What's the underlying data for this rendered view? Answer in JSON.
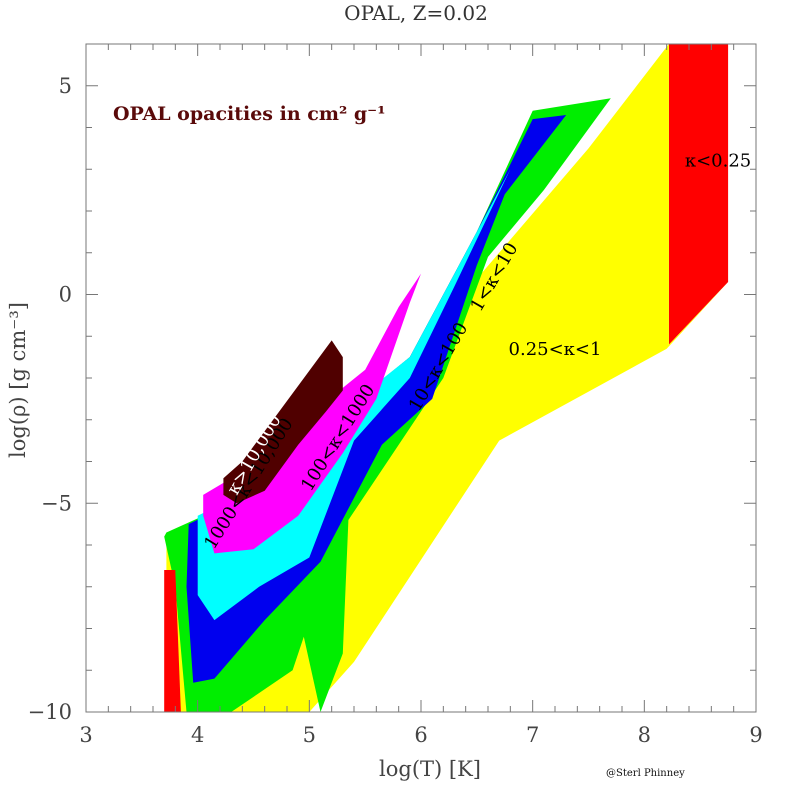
{
  "chart_data": {
    "type": "area",
    "title": "OPAL, Z=0.02",
    "subtitle": "OPAL opacities in cm² g⁻¹",
    "xlabel": "log(T)  [K]",
    "ylabel": "log(ρ)  [g cm⁻³]",
    "xlim": [
      3,
      9
    ],
    "ylim": [
      -10,
      6
    ],
    "xticks": [
      3,
      4,
      5,
      6,
      7,
      8,
      9
    ],
    "yticks": [
      -10,
      -5,
      0,
      5
    ],
    "credit": "@Sterl Phinney",
    "regions": [
      {
        "name": "kappa-lt-0.25-high",
        "label": "κ<0.25",
        "color": "#ff0000",
        "label_at": [
          8.66,
          3.07
        ],
        "label_rot": 0,
        "polygon": [
          [
            8.22,
            6.0
          ],
          [
            8.75,
            6.0
          ],
          [
            8.75,
            0.3
          ],
          [
            8.22,
            -1.2
          ]
        ]
      },
      {
        "name": "kappa-0.25-1",
        "label": "0.25<κ<1",
        "color": "#ffff00",
        "label_at": [
          7.2,
          -1.45
        ],
        "label_rot": 0,
        "polygon": [
          [
            3.72,
            -5.7
          ],
          [
            4.05,
            -5.6
          ],
          [
            5.9,
            -1.5
          ],
          [
            7.5,
            3.5
          ],
          [
            8.22,
            6.0
          ],
          [
            8.22,
            -1.2
          ],
          [
            8.75,
            0.3
          ],
          [
            8.2,
            -1.3
          ],
          [
            6.7,
            -3.5
          ],
          [
            5.4,
            -8.8
          ],
          [
            5.0,
            -10
          ],
          [
            4.4,
            -10
          ],
          [
            4.02,
            -10
          ],
          [
            3.72,
            -10
          ]
        ]
      },
      {
        "name": "kappa-1-10",
        "label": "1<κ<10",
        "color": "#00ee00",
        "label_at": [
          6.7,
          0.35
        ],
        "label_rot": -60,
        "polygon": [
          [
            3.72,
            -5.7
          ],
          [
            4.3,
            -5.0
          ],
          [
            5.9,
            -1.5
          ],
          [
            6.5,
            1.5
          ],
          [
            7.0,
            4.4
          ],
          [
            7.7,
            4.7
          ],
          [
            7.1,
            2.5
          ],
          [
            6.6,
            0.9
          ],
          [
            6.2,
            -2.0
          ],
          [
            5.8,
            -3.6
          ],
          [
            5.35,
            -5.4
          ],
          [
            5.3,
            -8.6
          ],
          [
            5.1,
            -10.0
          ],
          [
            4.95,
            -8.2
          ],
          [
            4.85,
            -9.0
          ],
          [
            4.3,
            -10.0
          ],
          [
            3.9,
            -10.0
          ],
          [
            3.8,
            -7.0
          ],
          [
            3.7,
            -5.8
          ]
        ]
      },
      {
        "name": "kappa-10-100",
        "label": "10<κ<100",
        "color": "#0000ee",
        "label_at": [
          6.2,
          -1.8
        ],
        "label_rot": -60,
        "polygon": [
          [
            3.92,
            -5.5
          ],
          [
            4.3,
            -5.0
          ],
          [
            5.9,
            -1.5
          ],
          [
            6.5,
            1.5
          ],
          [
            7.0,
            4.2
          ],
          [
            7.3,
            4.3
          ],
          [
            6.75,
            2.4
          ],
          [
            6.5,
            0.7
          ],
          [
            6.1,
            -2.5
          ],
          [
            5.65,
            -3.6
          ],
          [
            5.1,
            -6.4
          ],
          [
            4.6,
            -7.8
          ],
          [
            4.15,
            -9.2
          ],
          [
            3.96,
            -9.3
          ],
          [
            3.9,
            -7.0
          ]
        ]
      },
      {
        "name": "kappa-100-1000",
        "label": "100<κ<1000",
        "color": "#00ffff",
        "label_at": [
          5.3,
          -3.5
        ],
        "label_rot": -58,
        "polygon": [
          [
            4.0,
            -5.3
          ],
          [
            4.3,
            -4.9
          ],
          [
            5.9,
            -1.5
          ],
          [
            6.8,
            3.0
          ],
          [
            6.55,
            1.6
          ],
          [
            6.3,
            0.2
          ],
          [
            5.9,
            -2.0
          ],
          [
            5.4,
            -3.5
          ],
          [
            5.0,
            -6.3
          ],
          [
            4.55,
            -7.0
          ],
          [
            4.15,
            -7.8
          ],
          [
            4.0,
            -7.2
          ]
        ]
      },
      {
        "name": "kappa-1000-10000",
        "label": "1000<κ<10,000",
        "color": "#ff00ff",
        "label_at": [
          4.5,
          -4.6
        ],
        "label_rot": -58,
        "polygon": [
          [
            4.05,
            -4.8
          ],
          [
            4.3,
            -4.4
          ],
          [
            5.5,
            -1.8
          ],
          [
            5.8,
            -0.3
          ],
          [
            6.0,
            0.5
          ],
          [
            5.9,
            -0.2
          ],
          [
            5.6,
            -2.5
          ],
          [
            5.3,
            -3.8
          ],
          [
            4.9,
            -5.3
          ],
          [
            4.5,
            -6.1
          ],
          [
            4.15,
            -6.2
          ],
          [
            4.05,
            -5.3
          ]
        ]
      },
      {
        "name": "kappa-gt-10000",
        "label": "κ>10,000",
        "color": "#500000",
        "label_at": [
          4.55,
          -3.9
        ],
        "label_rot": -60,
        "polygon": [
          [
            4.23,
            -4.4
          ],
          [
            4.4,
            -4.0
          ],
          [
            5.2,
            -1.1
          ],
          [
            5.3,
            -1.5
          ],
          [
            5.3,
            -2.3
          ],
          [
            5.15,
            -2.8
          ],
          [
            4.9,
            -3.6
          ],
          [
            4.6,
            -4.7
          ],
          [
            4.35,
            -5.0
          ],
          [
            4.23,
            -4.8
          ]
        ]
      },
      {
        "name": "kappa-lt-0.25-low",
        "label": "",
        "color": "#ff0000",
        "polygon": [
          [
            3.7,
            -6.6
          ],
          [
            3.8,
            -6.6
          ],
          [
            3.85,
            -10
          ],
          [
            3.7,
            -10
          ]
        ]
      }
    ]
  }
}
